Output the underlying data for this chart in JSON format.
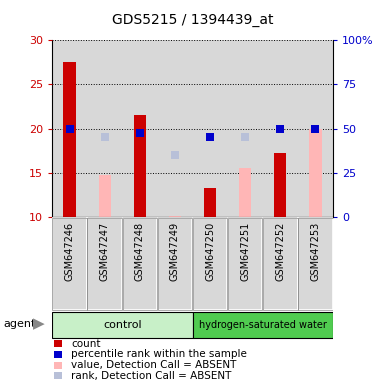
{
  "title": "GDS5215 / 1394439_at",
  "samples": [
    "GSM647246",
    "GSM647247",
    "GSM647248",
    "GSM647249",
    "GSM647250",
    "GSM647251",
    "GSM647252",
    "GSM647253"
  ],
  "bar_bottom": 10,
  "count_values": [
    27.5,
    null,
    21.5,
    null,
    13.3,
    null,
    17.2,
    null
  ],
  "absent_value_bars": [
    null,
    14.7,
    null,
    10.15,
    null,
    15.5,
    null,
    20.0
  ],
  "rank_present_left": [
    20.0,
    null,
    19.5,
    null,
    19.0,
    null,
    20.0,
    20.0
  ],
  "rank_absent_left": [
    null,
    19.0,
    null,
    17.0,
    null,
    19.0,
    null,
    null
  ],
  "ylim_left": [
    10,
    30
  ],
  "ylim_right": [
    0,
    100
  ],
  "yticks_left": [
    10,
    15,
    20,
    25,
    30
  ],
  "yticks_right": [
    0,
    25,
    50,
    75,
    100
  ],
  "ytick_labels_right": [
    "0",
    "25",
    "50",
    "75",
    "100%"
  ],
  "color_count": "#cc0000",
  "color_rank_present": "#0000cc",
  "color_absent_value": "#ffb6b6",
  "color_absent_rank": "#b8c0d8",
  "color_yticks_left": "#cc0000",
  "color_yticks_right": "#0000cc",
  "bar_width": 0.35,
  "marker_size": 6,
  "col_bg": "#d8d8d8",
  "plot_bg": "#ffffff",
  "control_color": "#c8f0c8",
  "h2_color": "#50cc50",
  "legend_items": [
    {
      "label": "count",
      "color": "#cc0000",
      "type": "rect"
    },
    {
      "label": "percentile rank within the sample",
      "color": "#0000cc",
      "type": "rect"
    },
    {
      "label": "value, Detection Call = ABSENT",
      "color": "#ffb6b6",
      "type": "rect"
    },
    {
      "label": "rank, Detection Call = ABSENT",
      "color": "#b8c0d8",
      "type": "rect"
    }
  ]
}
